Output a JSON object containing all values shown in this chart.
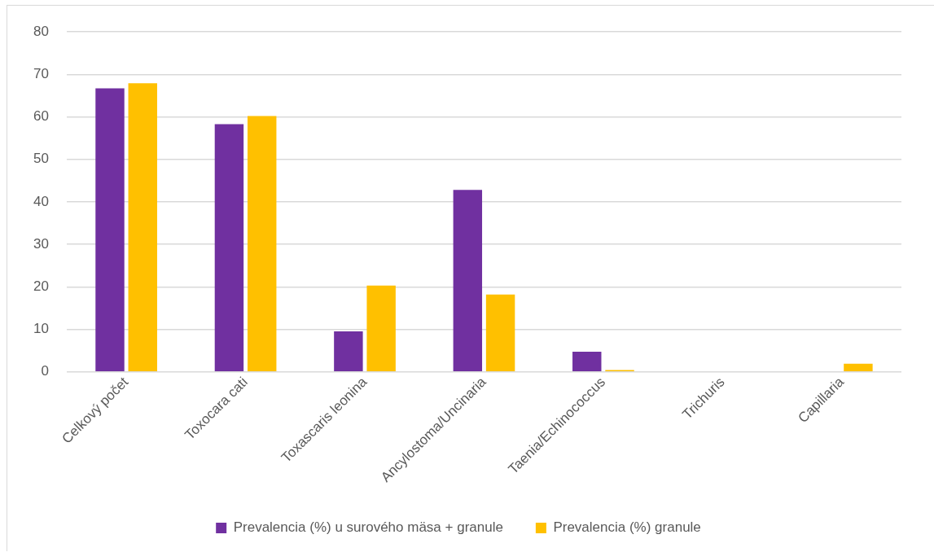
{
  "chart_data": {
    "type": "bar",
    "categories": [
      "Celkový počet",
      "Toxocara cati",
      "Toxascaris leonina",
      "Ancylostoma/Uncinaria",
      "Taenia/Echinococcus",
      "Trichuris",
      "Capillaria"
    ],
    "series": [
      {
        "name": "Prevalencia (%) u surového mäsa + granule",
        "color": "#7030a0",
        "values": [
          66.7,
          58.3,
          9.5,
          42.8,
          4.7,
          0,
          0
        ]
      },
      {
        "name": "Prevalencia (%) granule",
        "color": "#ffc000",
        "values": [
          67.9,
          60.2,
          20.3,
          18.2,
          0.4,
          0,
          1.9
        ]
      }
    ],
    "ylim": [
      0,
      80
    ],
    "yticks": [
      0,
      10,
      20,
      30,
      40,
      50,
      60,
      70,
      80
    ],
    "grid": "y",
    "legend": "bottom"
  }
}
